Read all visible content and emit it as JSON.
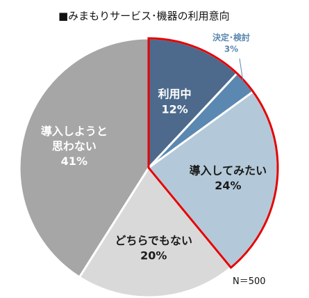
{
  "chart_data": {
    "type": "pie",
    "title": "■みまもりサービス･機器の利用意向",
    "sample_size": "N＝500",
    "slices": [
      {
        "name": "利用中",
        "value": 12,
        "percent_label": "12%",
        "color": "#4d6a8c",
        "label_color": "#ffffff"
      },
      {
        "name": "決定･検討",
        "value": 3,
        "percent_label": "3%",
        "color": "#5b88b0",
        "label_color": "#5b88b0"
      },
      {
        "name": "導入してみたい",
        "value": 24,
        "percent_label": "24%",
        "color": "#b3c9d9",
        "label_color": "#1a1a1a"
      },
      {
        "name": "どちらでもない",
        "value": 20,
        "percent_label": "20%",
        "color": "#d9d9d9",
        "label_color": "#1a1a1a"
      },
      {
        "name": "導入しようと思わない",
        "value": 41,
        "percent_label": "41%",
        "color": "#a6a6a6",
        "label_color": "#ffffff"
      }
    ],
    "highlight": {
      "slices": [
        "利用中",
        "決定･検討",
        "導入してみたい"
      ],
      "outline_color": "#e60000"
    }
  }
}
